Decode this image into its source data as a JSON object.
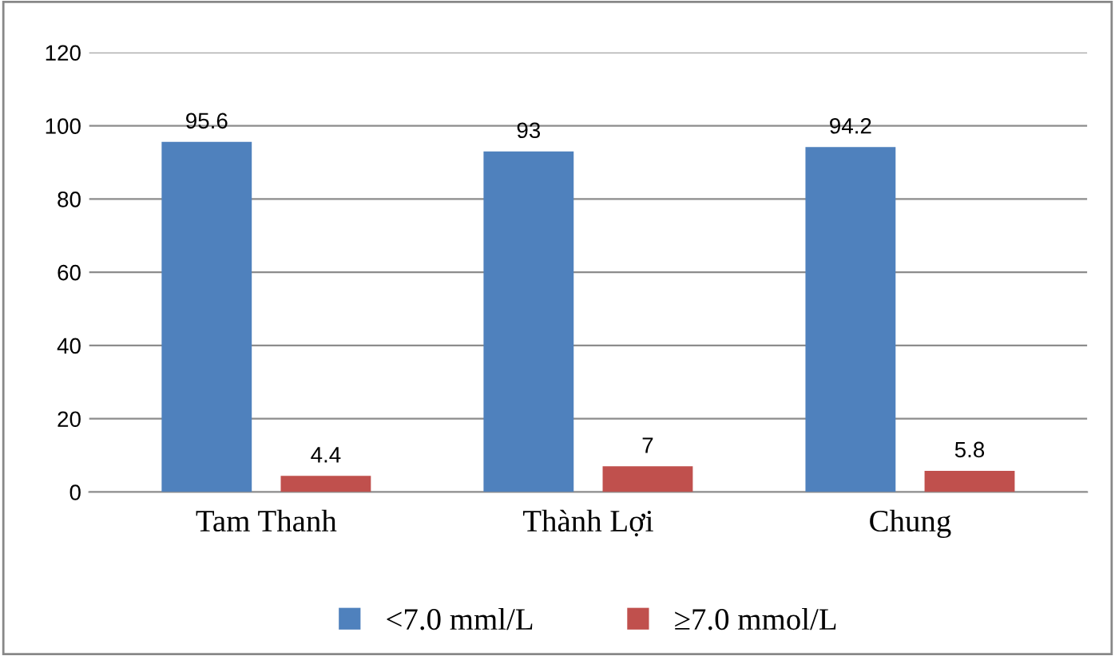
{
  "chart_data": {
    "type": "bar",
    "categories": [
      "Tam Thanh",
      "Thành Lợi",
      "Chung"
    ],
    "series": [
      {
        "name": "<7.0 mml/L",
        "color": "#4f81bd",
        "values": [
          95.6,
          93,
          94.2
        ]
      },
      {
        "name": "≥7.0 mmol/L",
        "color": "#c0504d",
        "values": [
          4.4,
          7,
          5.8
        ]
      }
    ],
    "ylim": [
      0,
      120
    ],
    "yticks": [
      0,
      20,
      40,
      60,
      80,
      100,
      120
    ],
    "grid": "y",
    "legend": "bottom",
    "data_labels": true
  }
}
